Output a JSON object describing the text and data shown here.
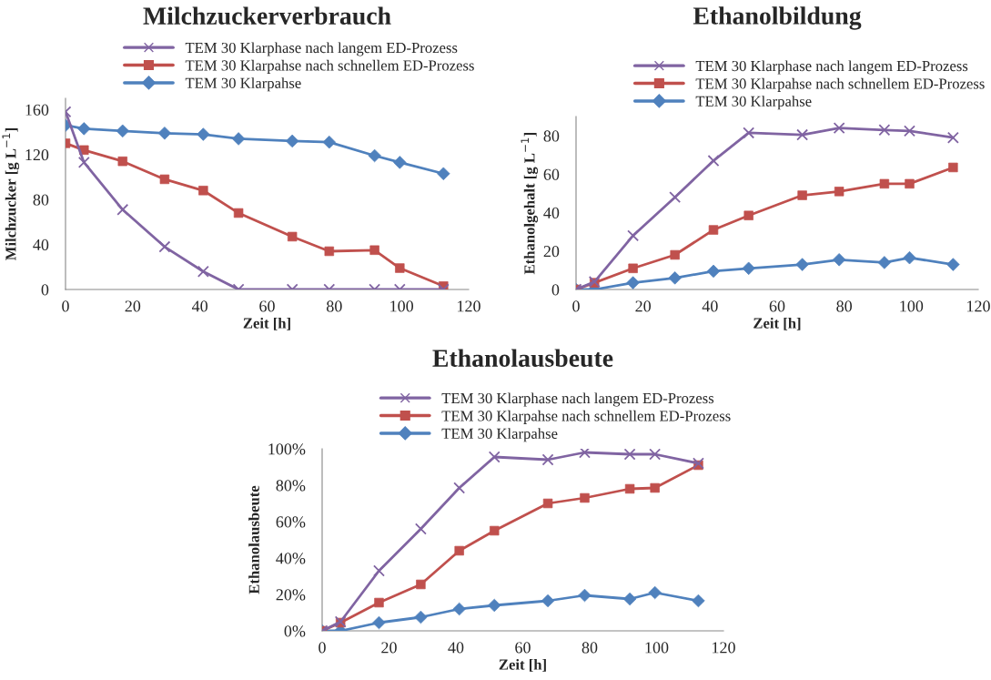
{
  "chart_data": [
    {
      "type": "line",
      "title": "Milchzuckerverbrauch",
      "xlabel": "Zeit [h]",
      "ylabel": "Milchzucker [g L$^{−1}$]",
      "x": [
        0,
        5.5,
        17,
        29.5,
        41,
        51.5,
        67.5,
        78.5,
        92,
        99.5,
        112.5
      ],
      "xlim": [
        0,
        120
      ],
      "xticks": [
        0,
        20,
        40,
        60,
        80,
        100,
        120
      ],
      "ylim": [
        0,
        170
      ],
      "yticks": [
        0,
        40,
        80,
        120,
        160
      ],
      "grid": false,
      "legend": "top",
      "series": [
        {
          "name": "TEM 30 Klarphase nach langem ED-Prozess",
          "color": "#8064a2",
          "marker": "cross",
          "values": [
            158,
            113,
            71,
            38,
            16,
            0,
            0,
            0,
            0,
            0,
            0
          ]
        },
        {
          "name": "TEM 30 Klarpahse nach schnellem ED-Prozess",
          "color": "#c0504d",
          "marker": "square",
          "values": [
            130,
            124,
            114,
            98,
            88,
            68,
            47,
            34,
            35,
            19,
            3
          ]
        },
        {
          "name": "TEM 30 Klarpahse",
          "color": "#4f81bd",
          "marker": "diamond",
          "values": [
            146,
            143,
            141,
            139,
            138,
            134,
            132,
            131,
            119,
            113,
            103
          ]
        }
      ]
    },
    {
      "type": "line",
      "title": "Ethanolbildung",
      "xlabel": "Zeit [h]",
      "ylabel": "Ethanolgehalt [g L$^{−1}$]",
      "x": [
        0,
        5.5,
        17,
        29.5,
        41,
        51.5,
        67.5,
        78.5,
        92,
        99.5,
        112.5
      ],
      "xlim": [
        0,
        120
      ],
      "xticks": [
        0,
        20,
        40,
        60,
        80,
        100,
        120
      ],
      "ylim": [
        0,
        90
      ],
      "yticks": [
        0,
        20,
        40,
        60,
        80
      ],
      "grid": false,
      "legend": "top",
      "series": [
        {
          "name": "TEM 30 Klarphase nach langem ED-Prozess",
          "color": "#8064a2",
          "marker": "cross",
          "values": [
            0,
            4,
            28,
            48,
            67,
            81.5,
            80.5,
            84,
            83,
            82.5,
            79
          ]
        },
        {
          "name": "TEM 30 Klarpahse nach schnellem ED-Prozess",
          "color": "#c0504d",
          "marker": "square",
          "values": [
            0,
            3.5,
            11,
            18,
            31,
            38.5,
            49,
            51,
            55,
            55,
            63.5
          ]
        },
        {
          "name": "TEM 30 Klarpahse",
          "color": "#4f81bd",
          "marker": "diamond",
          "values": [
            0,
            0,
            3.5,
            6,
            9.5,
            11,
            13,
            15.5,
            14,
            16.5,
            13
          ]
        }
      ]
    },
    {
      "type": "line",
      "title": "Ethanolausbeute",
      "xlabel": "Zeit [h]",
      "ylabel": "Ethanolausbeute",
      "x": [
        0,
        5.5,
        17,
        29.5,
        41,
        51.5,
        67.5,
        78.5,
        92,
        99.5,
        112.5
      ],
      "xlim": [
        0,
        120
      ],
      "xticks": [
        0,
        20,
        40,
        60,
        80,
        100,
        120
      ],
      "ylim": [
        0,
        100
      ],
      "yticks": [
        {
          "value": 0,
          "label": "0%"
        },
        {
          "value": 20,
          "label": "20%"
        },
        {
          "value": 40,
          "label": "40%"
        },
        {
          "value": 60,
          "label": "60%"
        },
        {
          "value": 80,
          "label": "80%"
        },
        {
          "value": 100,
          "label": "100%"
        }
      ],
      "grid": false,
      "legend": "top",
      "series": [
        {
          "name": "TEM 30 Klarphase nach langem ED-Prozess",
          "color": "#8064a2",
          "marker": "cross",
          "values": [
            0,
            5,
            33,
            56,
            78.5,
            95.5,
            94,
            98,
            97,
            97,
            92
          ]
        },
        {
          "name": "TEM 30 Klarpahse nach schnellem ED-Prozess",
          "color": "#c0504d",
          "marker": "square",
          "values": [
            0,
            4.5,
            15.5,
            25.5,
            44,
            55,
            70,
            73,
            78,
            78.5,
            91
          ]
        },
        {
          "name": "TEM 30 Klarpahse",
          "color": "#4f81bd",
          "marker": "diamond",
          "values": [
            0,
            0,
            4.5,
            7.5,
            12,
            14,
            16.5,
            19.5,
            17.5,
            21,
            16.5
          ]
        }
      ]
    }
  ]
}
